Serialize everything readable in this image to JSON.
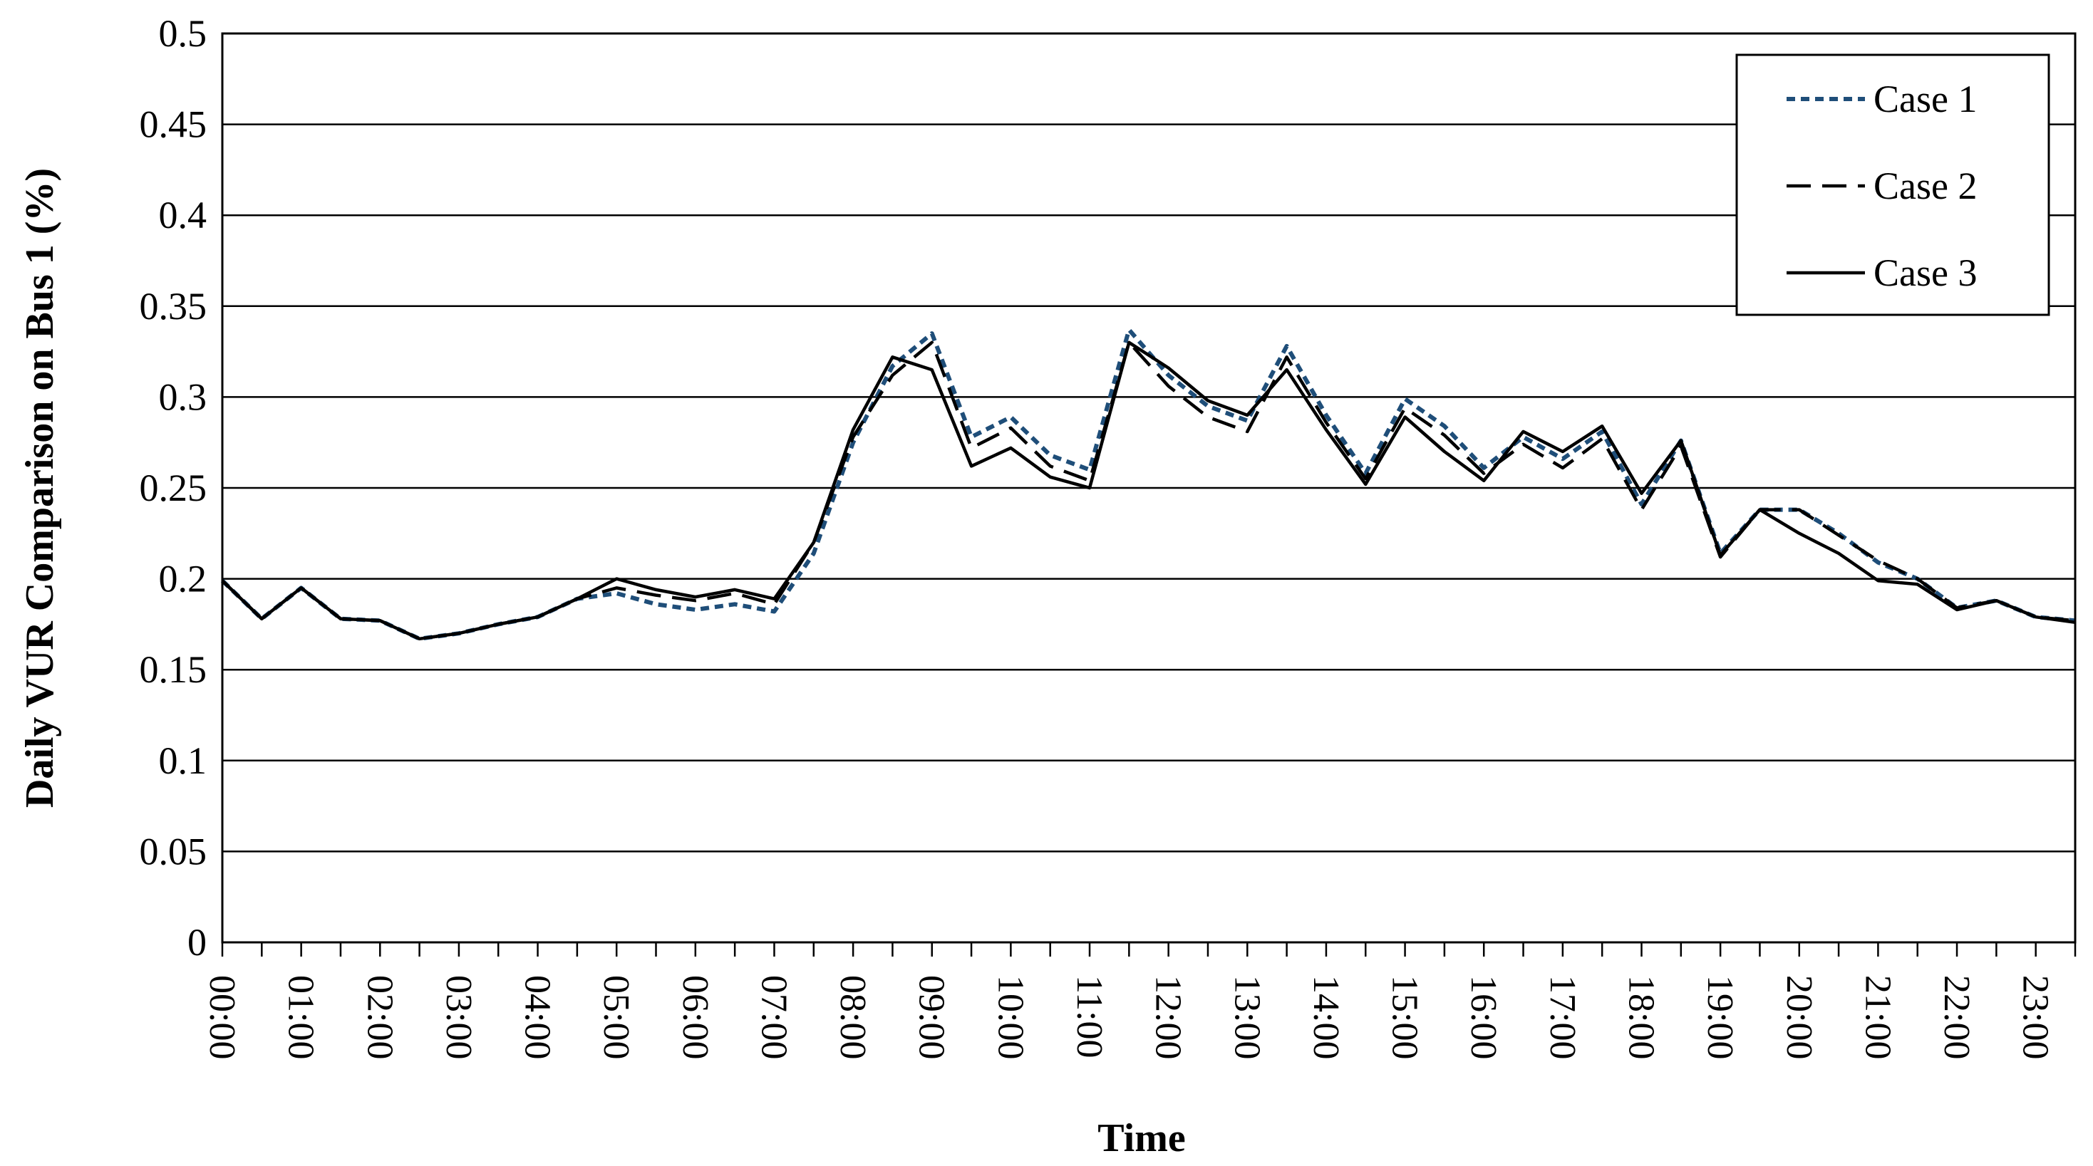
{
  "chart_data": {
    "type": "line",
    "title": "",
    "xlabel": "Time",
    "ylabel": "Daily VUR Comparison on Bus 1 (%)",
    "ylim": [
      0,
      0.5
    ],
    "yticks": [
      "0",
      "0.05",
      "0.1",
      "0.15",
      "0.2",
      "0.25",
      "0.3",
      "0.35",
      "0.4",
      "0.45",
      "0.5"
    ],
    "xtick_labels": [
      "00:00",
      "01:00",
      "02:00",
      "03:00",
      "04:00",
      "05:00",
      "06:00",
      "07:00",
      "08:00",
      "09:00",
      "10:00",
      "11:00",
      "12:00",
      "13:00",
      "14:00",
      "15:00",
      "16:00",
      "17:00",
      "18:00",
      "19:00",
      "20:00",
      "21:00",
      "22:00",
      "23:00"
    ],
    "grid": "horizontal",
    "legend_position": "top-right",
    "series": [
      {
        "name": "Case 1",
        "color": "#1f4e79",
        "style": "dotted",
        "values": [
          0.199,
          0.178,
          0.195,
          0.178,
          0.177,
          0.167,
          0.17,
          0.175,
          0.179,
          0.189,
          0.192,
          0.186,
          0.183,
          0.186,
          0.182,
          0.214,
          0.275,
          0.317,
          0.335,
          0.278,
          0.289,
          0.268,
          0.26,
          0.337,
          0.312,
          0.295,
          0.287,
          0.328,
          0.29,
          0.258,
          0.299,
          0.284,
          0.261,
          0.278,
          0.266,
          0.281,
          0.241,
          0.276,
          0.214,
          0.238,
          0.238,
          0.225,
          0.209,
          0.2,
          0.184,
          0.188,
          0.179,
          0.177
        ]
      },
      {
        "name": "Case 2",
        "color": "#000000",
        "style": "dashed",
        "values": [
          0.199,
          0.178,
          0.195,
          0.178,
          0.177,
          0.167,
          0.17,
          0.175,
          0.179,
          0.189,
          0.195,
          0.191,
          0.188,
          0.192,
          0.186,
          0.22,
          0.278,
          0.312,
          0.33,
          0.272,
          0.283,
          0.262,
          0.254,
          0.33,
          0.306,
          0.289,
          0.281,
          0.322,
          0.286,
          0.255,
          0.294,
          0.279,
          0.258,
          0.274,
          0.261,
          0.277,
          0.238,
          0.273,
          0.212,
          0.238,
          0.238,
          0.224,
          0.21,
          0.2,
          0.184,
          0.188,
          0.179,
          0.177
        ]
      },
      {
        "name": "Case 3",
        "color": "#000000",
        "style": "solid",
        "values": [
          0.199,
          0.178,
          0.195,
          0.178,
          0.177,
          0.167,
          0.17,
          0.175,
          0.179,
          0.189,
          0.2,
          0.194,
          0.19,
          0.194,
          0.189,
          0.22,
          0.282,
          0.322,
          0.315,
          0.262,
          0.272,
          0.256,
          0.25,
          0.33,
          0.316,
          0.298,
          0.29,
          0.315,
          0.282,
          0.252,
          0.289,
          0.27,
          0.254,
          0.281,
          0.27,
          0.284,
          0.247,
          0.276,
          0.213,
          0.238,
          0.225,
          0.214,
          0.199,
          0.197,
          0.183,
          0.188,
          0.179,
          0.176
        ]
      }
    ]
  }
}
